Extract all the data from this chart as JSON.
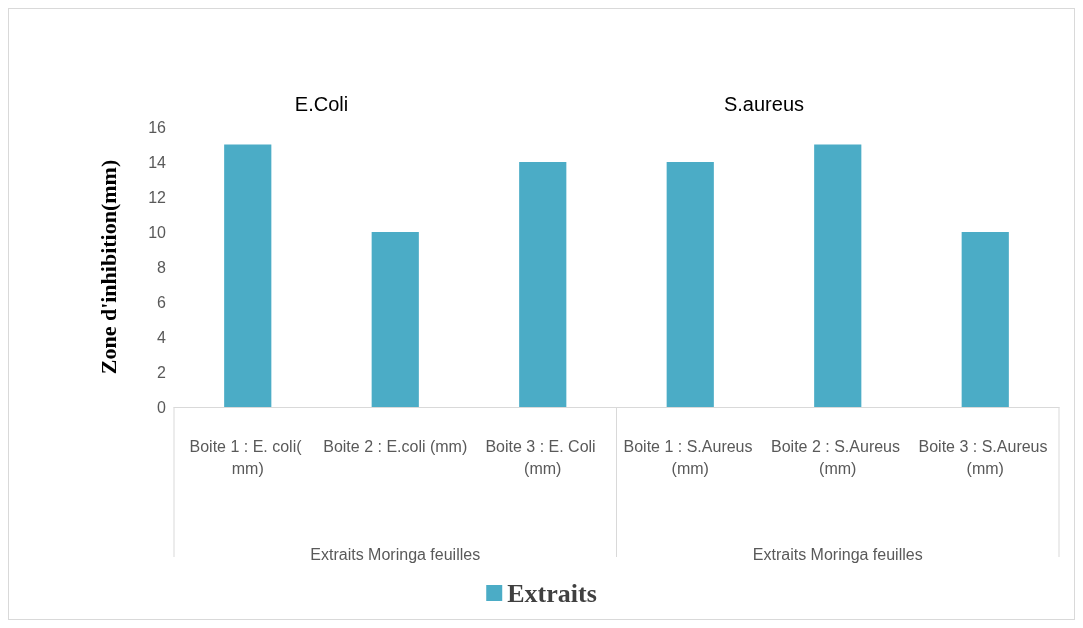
{
  "chart_data": {
    "type": "bar",
    "ylabel": "Zone d'inhibition(mm)",
    "categories": [
      "Boite 1 : E. coli( mm)",
      "Boite 2 : E.coli (mm)",
      "Boite 3 : E. Coli (mm)",
      "Boite 1 : S.Aureus (mm)",
      "Boite 2 : S.Aureus (mm)",
      "Boite 3 : S.Aureus (mm)"
    ],
    "series": [
      {
        "name": "Extraits",
        "color": "#4bacc6",
        "values": [
          15,
          10,
          14,
          14,
          15,
          10
        ]
      }
    ],
    "ylim": [
      0,
      16
    ],
    "yticks": [
      0,
      2,
      4,
      6,
      8,
      10,
      12,
      14,
      16
    ],
    "grid": false,
    "legend": "bottom",
    "annotations": [
      "E.Coli",
      "S.aureus",
      "Extraits Moringa feuilles",
      "Extraits Moringa feuilles"
    ]
  }
}
